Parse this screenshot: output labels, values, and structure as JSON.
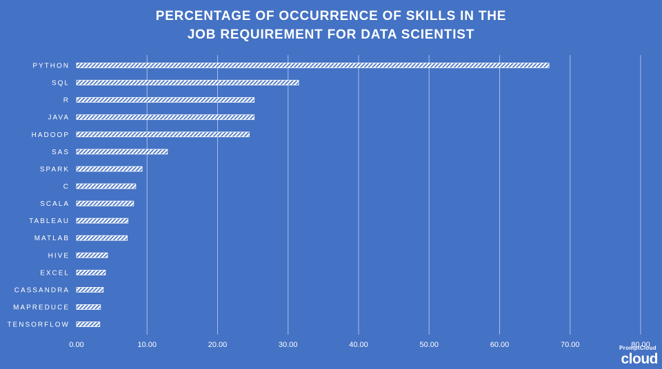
{
  "chart_data": {
    "type": "bar",
    "orientation": "horizontal",
    "title": "PERCENTAGE  OF OCCURRENCE  OF SKILLS  IN  THE JOB REQUIREMENT  FOR DATA SCIENTIST",
    "title_lines": [
      "PERCENTAGE  OF OCCURRENCE  OF SKILLS  IN  THE",
      "JOB REQUIREMENT  FOR DATA SCIENTIST"
    ],
    "categories": [
      "PYTHON",
      "SQL",
      "R",
      "JAVA",
      "HADOOP",
      "SAS",
      "SPARK",
      "C",
      "SCALA",
      "TABLEAU",
      "MATLAB",
      "HIVE",
      "EXCEL",
      "CASSANDRA",
      "MAPREDUCE",
      "TENSORFLOW"
    ],
    "values": [
      67.0,
      31.5,
      25.2,
      25.2,
      24.5,
      12.9,
      9.3,
      8.4,
      8.1,
      7.3,
      7.2,
      4.4,
      4.1,
      3.8,
      3.4,
      3.3
    ],
    "xlim": [
      0,
      80
    ],
    "xticks": [
      0,
      10,
      20,
      30,
      40,
      50,
      60,
      70,
      80
    ],
    "xtick_labels": [
      "0.00",
      "10.00",
      "20.00",
      "30.00",
      "40.00",
      "50.00",
      "60.00",
      "70.00",
      "80.00"
    ],
    "xlabel": "",
    "ylabel": "",
    "grid": "vertical",
    "legend": "none",
    "bar_style": "diagonal-hatch",
    "colors": {
      "background": "#4472c4",
      "bar": "#ffffff",
      "gridline": "#a9bfe6",
      "text": "#ffffff"
    }
  },
  "watermark": {
    "logo_small": "promptcloud",
    "logo_big": "cloud"
  }
}
